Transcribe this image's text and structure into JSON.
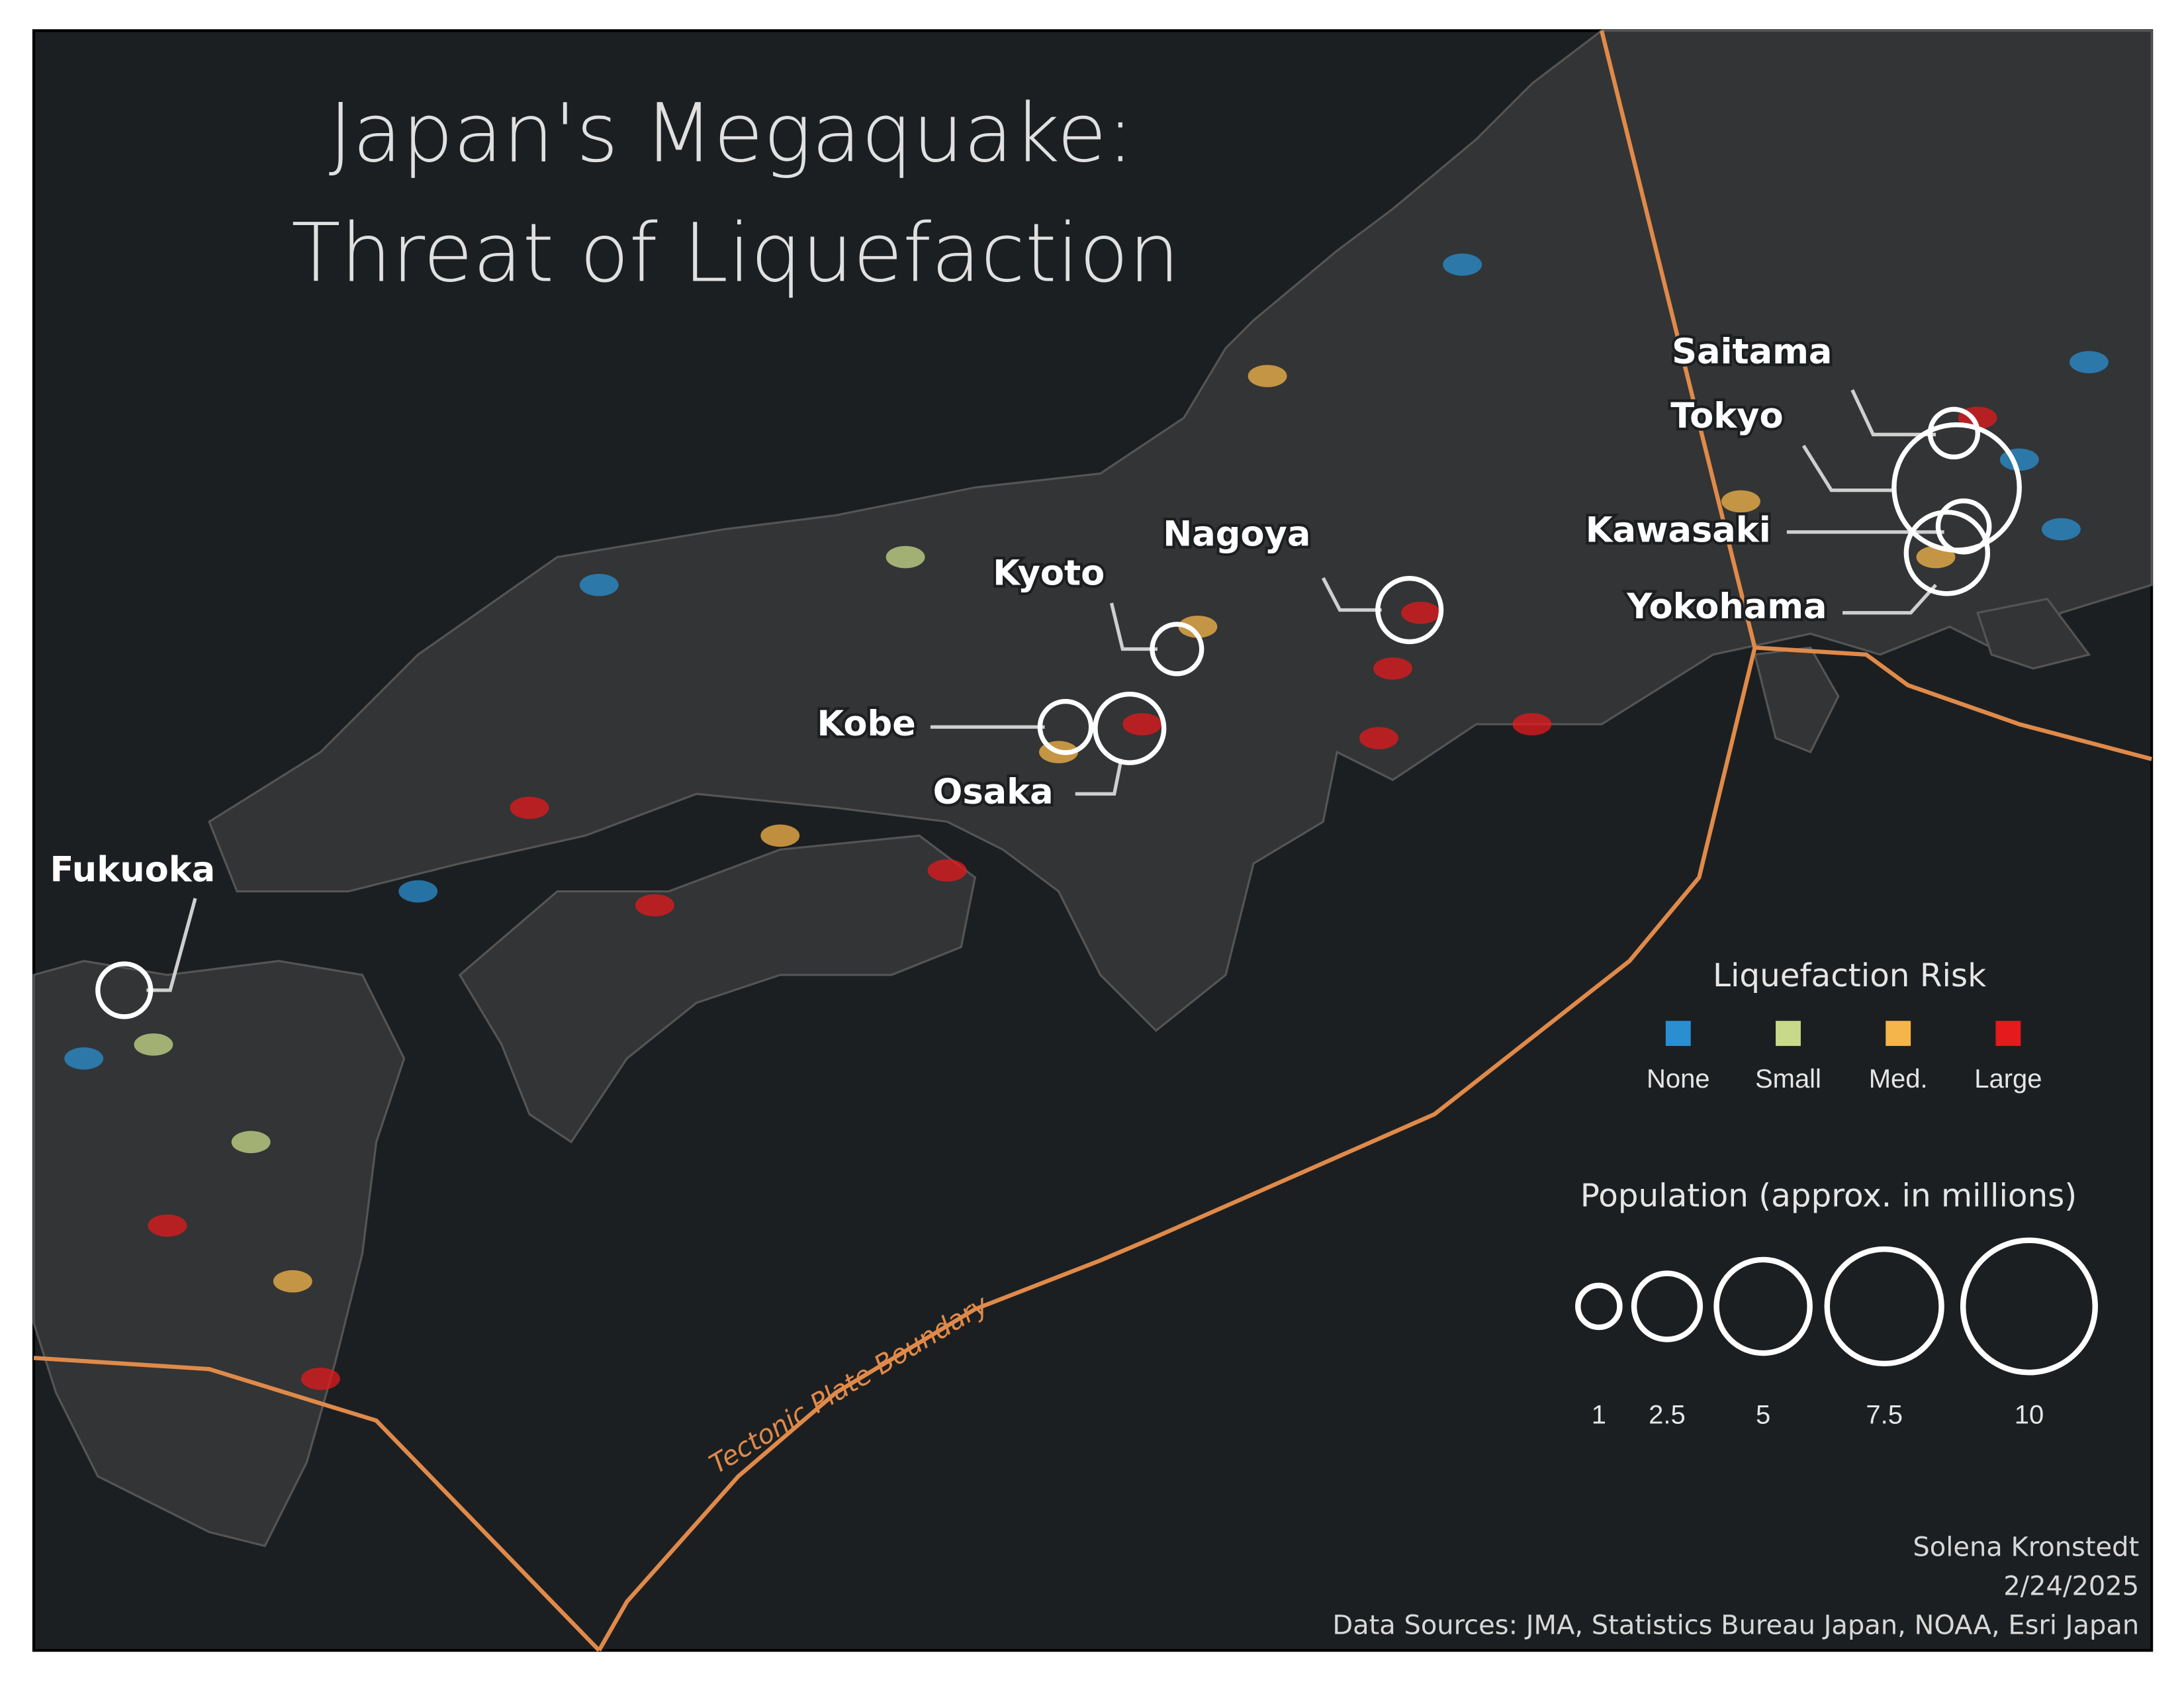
{
  "title_lines": [
    "Japan's Megaquake:",
    "Threat of Liquefaction"
  ],
  "cities": [
    {
      "name": "Saitama",
      "population": 1.3
    },
    {
      "name": "Tokyo",
      "population": 9
    },
    {
      "name": "Kawasaki",
      "population": 1.5
    },
    {
      "name": "Yokohama",
      "population": 3.8
    },
    {
      "name": "Nagoya",
      "population": 2.3
    },
    {
      "name": "Kyoto",
      "population": 1.4
    },
    {
      "name": "Kobe",
      "population": 1.5
    },
    {
      "name": "Osaka",
      "population": 2.7
    },
    {
      "name": "Fukuoka",
      "population": 1.6
    }
  ],
  "risk_legend": {
    "title": "Liquefaction Risk",
    "items": [
      {
        "label": "None",
        "color": "#2a8fd0"
      },
      {
        "label": "Small",
        "color": "#c8d98a"
      },
      {
        "label": "Med.",
        "color": "#f5b54a"
      },
      {
        "label": "Large",
        "color": "#e41a1c"
      }
    ]
  },
  "population_legend": {
    "title": "Population (approx. in millions)",
    "values": [
      1,
      2.5,
      5,
      7.5,
      10
    ]
  },
  "plate_boundary_label": "Tectonic Plate Boundary",
  "credits": [
    "Solena Kronstedt",
    "2/24/2025",
    "Data Sources: JMA, Statistics Bureau Japan, NOAA, Esri Japan"
  ]
}
